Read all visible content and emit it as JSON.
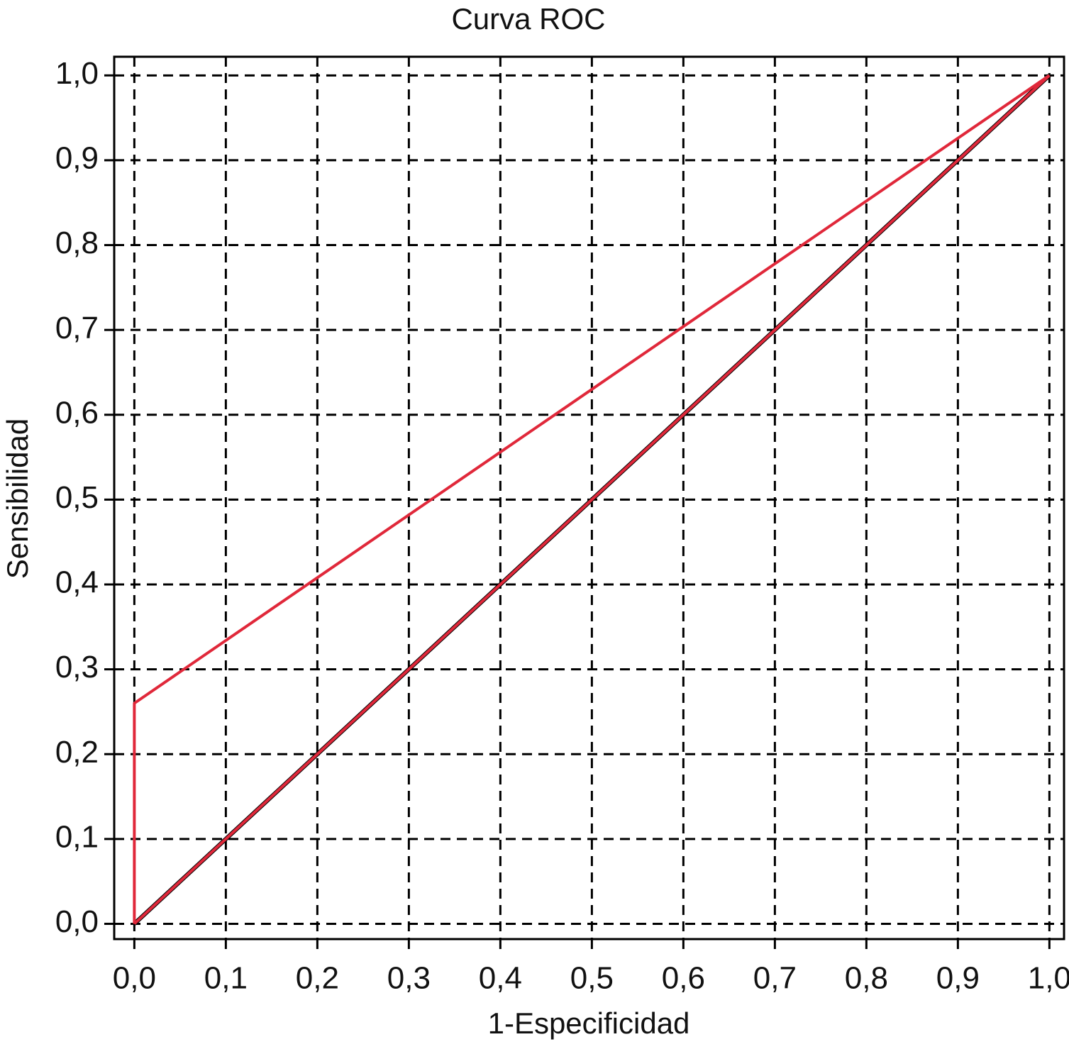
{
  "chart_data": {
    "type": "line",
    "title": "Curva ROC",
    "x_label": "1-Especificidad",
    "y_label": "Sensibilidad",
    "series": [
      {
        "color": "#000000",
        "x": [
          0,
          1
        ],
        "values": [
          0,
          1
        ]
      },
      {
        "color": "#e0283a",
        "x": [
          0,
          1
        ],
        "values": [
          0,
          1
        ]
      },
      {
        "color": "#e0283a",
        "x": [
          0,
          0,
          1
        ],
        "values": [
          0,
          0.26,
          1
        ]
      }
    ],
    "xlim": [
      -0.022,
      1.016
    ],
    "ylim": [
      -0.018,
      1.022
    ],
    "xticks": [
      {
        "value": 0,
        "label": "0,0"
      },
      {
        "value": 0.1,
        "label": "0,1"
      },
      {
        "value": 0.2,
        "label": "0,2"
      },
      {
        "value": 0.3,
        "label": "0,3"
      },
      {
        "value": 0.4,
        "label": "0,4"
      },
      {
        "value": 0.5,
        "label": "0,5"
      },
      {
        "value": 0.6,
        "label": "0,6"
      },
      {
        "value": 0.7,
        "label": "0,7"
      },
      {
        "value": 0.8,
        "label": "0,8"
      },
      {
        "value": 0.9,
        "label": "0,9"
      },
      {
        "value": 1,
        "label": "1,0"
      }
    ],
    "yticks": [
      {
        "value": 0,
        "label": "0,0"
      },
      {
        "value": 0.1,
        "label": "0,1"
      },
      {
        "value": 0.2,
        "label": "0,2"
      },
      {
        "value": 0.3,
        "label": "0,3"
      },
      {
        "value": 0.4,
        "label": "0,4"
      },
      {
        "value": 0.5,
        "label": "0,5"
      },
      {
        "value": 0.6,
        "label": "0,6"
      },
      {
        "value": 0.7,
        "label": "0,7"
      },
      {
        "value": 0.8,
        "label": "0,8"
      },
      {
        "value": 0.9,
        "label": "0,9"
      },
      {
        "value": 1,
        "label": "1,0"
      }
    ],
    "grid": true
  }
}
